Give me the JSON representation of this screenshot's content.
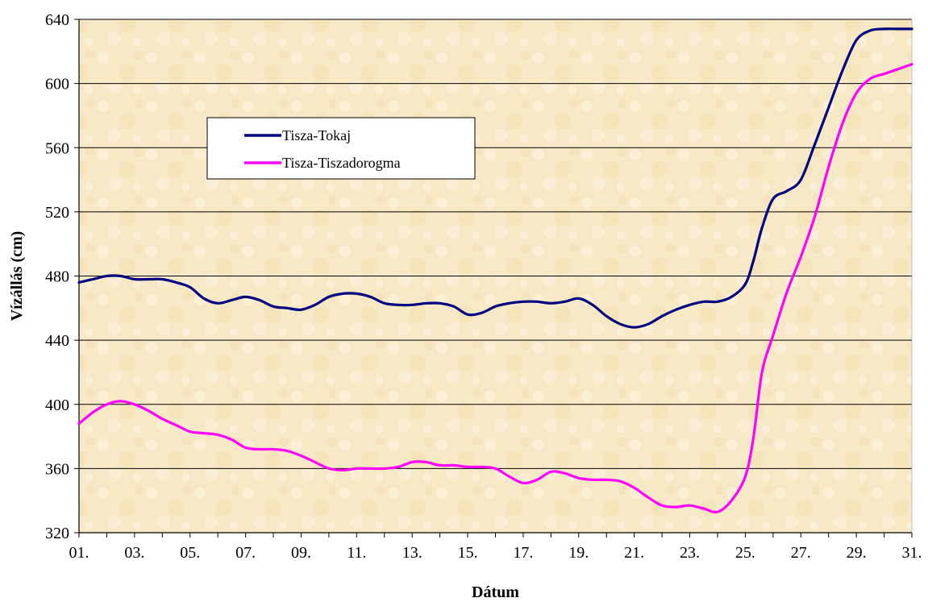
{
  "chart_data": {
    "type": "line",
    "title": "",
    "xlabel": "Dátum",
    "ylabel": "Vízállás (cm)",
    "ylim": [
      320,
      640
    ],
    "yticks": [
      320,
      360,
      400,
      440,
      480,
      520,
      560,
      600,
      640
    ],
    "xlim": [
      1,
      31
    ],
    "xticks": [
      {
        "value": 1,
        "label": "01."
      },
      {
        "value": 3,
        "label": "03."
      },
      {
        "value": 5,
        "label": "05."
      },
      {
        "value": 7,
        "label": "07."
      },
      {
        "value": 9,
        "label": "09."
      },
      {
        "value": 11,
        "label": "11."
      },
      {
        "value": 13,
        "label": "13."
      },
      {
        "value": 15,
        "label": "15."
      },
      {
        "value": 17,
        "label": "17."
      },
      {
        "value": 19,
        "label": "19."
      },
      {
        "value": 21,
        "label": "21."
      },
      {
        "value": 23,
        "label": "23."
      },
      {
        "value": 25,
        "label": "25."
      },
      {
        "value": 27,
        "label": "27."
      },
      {
        "value": 29,
        "label": "29."
      },
      {
        "value": 31,
        "label": "31."
      }
    ],
    "grid": "horizontal",
    "legend_position": "upper-left",
    "series": [
      {
        "name": "Tisza-Tokaj",
        "color": "#000080",
        "points": [
          [
            1,
            476
          ],
          [
            1.5,
            478
          ],
          [
            2,
            480
          ],
          [
            2.5,
            480
          ],
          [
            3,
            478
          ],
          [
            3.5,
            478
          ],
          [
            4,
            478
          ],
          [
            4.5,
            476
          ],
          [
            5,
            473
          ],
          [
            5.5,
            466
          ],
          [
            6,
            463
          ],
          [
            6.5,
            465
          ],
          [
            7,
            467
          ],
          [
            7.5,
            465
          ],
          [
            8,
            461
          ],
          [
            8.5,
            460
          ],
          [
            9,
            459
          ],
          [
            9.5,
            462
          ],
          [
            10,
            467
          ],
          [
            10.5,
            469
          ],
          [
            11,
            469
          ],
          [
            11.5,
            467
          ],
          [
            12,
            463
          ],
          [
            12.5,
            462
          ],
          [
            13,
            462
          ],
          [
            13.5,
            463
          ],
          [
            14,
            463
          ],
          [
            14.5,
            461
          ],
          [
            15,
            456
          ],
          [
            15.5,
            457
          ],
          [
            16,
            461
          ],
          [
            16.5,
            463
          ],
          [
            17,
            464
          ],
          [
            17.5,
            464
          ],
          [
            18,
            463
          ],
          [
            18.5,
            464
          ],
          [
            19,
            466
          ],
          [
            19.5,
            462
          ],
          [
            20,
            455
          ],
          [
            20.5,
            450
          ],
          [
            21,
            448
          ],
          [
            21.5,
            450
          ],
          [
            22,
            455
          ],
          [
            22.5,
            459
          ],
          [
            23,
            462
          ],
          [
            23.5,
            464
          ],
          [
            24,
            464
          ],
          [
            24.5,
            467
          ],
          [
            25,
            475
          ],
          [
            25.3,
            490
          ],
          [
            25.6,
            510
          ],
          [
            26,
            528
          ],
          [
            26.5,
            533
          ],
          [
            27,
            540
          ],
          [
            27.5,
            562
          ],
          [
            28,
            585
          ],
          [
            28.5,
            608
          ],
          [
            29,
            627
          ],
          [
            29.5,
            633
          ],
          [
            30,
            634
          ],
          [
            30.5,
            634
          ],
          [
            31,
            634
          ]
        ]
      },
      {
        "name": "Tisza-Tiszadorogma",
        "color": "#FF00FF",
        "points": [
          [
            1,
            388
          ],
          [
            1.5,
            395
          ],
          [
            2,
            400
          ],
          [
            2.5,
            402
          ],
          [
            3,
            400
          ],
          [
            3.5,
            396
          ],
          [
            4,
            391
          ],
          [
            4.5,
            387
          ],
          [
            5,
            383
          ],
          [
            5.5,
            382
          ],
          [
            6,
            381
          ],
          [
            6.5,
            378
          ],
          [
            7,
            373
          ],
          [
            7.5,
            372
          ],
          [
            8,
            372
          ],
          [
            8.5,
            371
          ],
          [
            9,
            368
          ],
          [
            9.5,
            364
          ],
          [
            10,
            360
          ],
          [
            10.5,
            359
          ],
          [
            11,
            360
          ],
          [
            11.5,
            360
          ],
          [
            12,
            360
          ],
          [
            12.5,
            361
          ],
          [
            13,
            364
          ],
          [
            13.5,
            364
          ],
          [
            14,
            362
          ],
          [
            14.5,
            362
          ],
          [
            15,
            361
          ],
          [
            15.5,
            361
          ],
          [
            16,
            360
          ],
          [
            16.5,
            355
          ],
          [
            17,
            351
          ],
          [
            17.5,
            353
          ],
          [
            18,
            358
          ],
          [
            18.5,
            357
          ],
          [
            19,
            354
          ],
          [
            19.5,
            353
          ],
          [
            20,
            353
          ],
          [
            20.5,
            352
          ],
          [
            21,
            348
          ],
          [
            21.5,
            342
          ],
          [
            22,
            337
          ],
          [
            22.5,
            336
          ],
          [
            23,
            337
          ],
          [
            23.5,
            335
          ],
          [
            24,
            333
          ],
          [
            24.5,
            340
          ],
          [
            25,
            355
          ],
          [
            25.3,
            380
          ],
          [
            25.6,
            420
          ],
          [
            26,
            443
          ],
          [
            26.5,
            470
          ],
          [
            27,
            492
          ],
          [
            27.5,
            517
          ],
          [
            28,
            548
          ],
          [
            28.5,
            575
          ],
          [
            29,
            594
          ],
          [
            29.5,
            603
          ],
          [
            30,
            606
          ],
          [
            30.5,
            609
          ],
          [
            31,
            612
          ]
        ]
      }
    ]
  }
}
